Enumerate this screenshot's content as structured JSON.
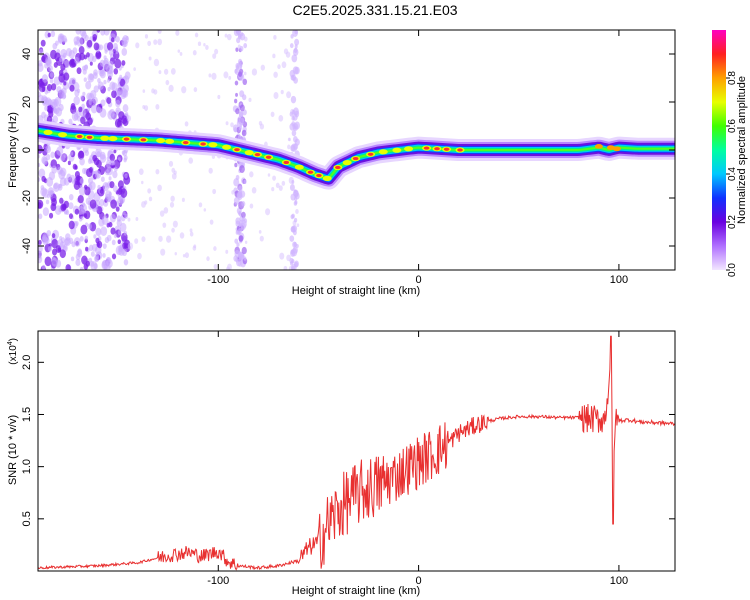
{
  "title": "C2E5.2025.331.15.21.E03",
  "chart_data": [
    {
      "type": "heatmap",
      "name": "spectrogram",
      "xlabel": "Height of straight line (km)",
      "ylabel": "Frequency (Hz)",
      "xlim": [
        -190,
        128
      ],
      "ylim": [
        -50,
        50
      ],
      "xticks": [
        -100,
        0,
        100
      ],
      "xtick_labels": [
        "-100",
        "0",
        "100"
      ],
      "yticks": [
        -40,
        -20,
        0,
        20,
        40
      ],
      "ytick_labels": [
        "-40",
        "-20",
        "0",
        "20",
        "40"
      ],
      "ridge": {
        "x": [
          -190,
          -175,
          -160,
          -145,
          -130,
          -115,
          -100,
          -90,
          -80,
          -70,
          -60,
          -52,
          -45,
          -40,
          -35,
          -30,
          -20,
          -10,
          0,
          10,
          20,
          40,
          60,
          80,
          90,
          95,
          100,
          110,
          128
        ],
        "y": [
          8,
          6,
          5,
          4.5,
          4,
          3,
          2,
          0,
          -2,
          -4,
          -7,
          -10,
          -12,
          -7,
          -5,
          -3,
          -1,
          0,
          1,
          0.5,
          0,
          0,
          0,
          0,
          1,
          0,
          1,
          0.5,
          0.5
        ]
      },
      "colorbar": {
        "label": "Normalized spectral amplitude",
        "range": [
          0,
          1
        ],
        "ticks": [
          0.0,
          0.2,
          0.4,
          0.6,
          0.8
        ],
        "tick_labels": [
          "0.0",
          "0.2",
          "0.4",
          "0.6",
          "0.8"
        ],
        "colors": [
          "#f2e6ff",
          "#b070ff",
          "#6a00e0",
          "#1030ff",
          "#00c8ff",
          "#00ffa0",
          "#40ff00",
          "#e8ff00",
          "#ffa000",
          "#ff2020",
          "#ff00c0"
        ]
      }
    },
    {
      "type": "line",
      "name": "snr",
      "xlabel": "Height of straight line (km)",
      "ylabel": "SNR (10 * v/v)",
      "y_scale_label": "(x10",
      "y_scale_exp": "4",
      "y_scale_close": ")",
      "xlim": [
        -190,
        128
      ],
      "ylim": [
        0,
        23000
      ],
      "xticks": [
        -100,
        0,
        100
      ],
      "xtick_labels": [
        "-100",
        "0",
        "100"
      ],
      "yticks": [
        5000,
        10000,
        15000,
        20000
      ],
      "ytick_labels": [
        "0.5",
        "1.0",
        "1.5",
        "2.0"
      ],
      "color": "#e83030",
      "x": [
        -190,
        -160,
        -140,
        -125,
        -115,
        -108,
        -100,
        -95,
        -90,
        -80,
        -70,
        -60,
        -55,
        -50,
        -45,
        -40,
        -35,
        -30,
        -25,
        -20,
        -15,
        -10,
        -5,
        0,
        5,
        10,
        15,
        20,
        30,
        40,
        50,
        60,
        70,
        80,
        85,
        90,
        93,
        95,
        96,
        97,
        98,
        100,
        105,
        110,
        120,
        128
      ],
      "y": [
        300,
        500,
        800,
        1500,
        1800,
        1400,
        1900,
        900,
        500,
        300,
        500,
        1000,
        2200,
        2800,
        4500,
        5800,
        6800,
        7400,
        7900,
        8200,
        8700,
        9300,
        9900,
        10500,
        11000,
        11600,
        12300,
        13200,
        14100,
        14600,
        14800,
        14800,
        14700,
        14700,
        14600,
        14500,
        14600,
        18000,
        22000,
        8000,
        14200,
        14400,
        14500,
        14300,
        14200,
        14100
      ]
    }
  ]
}
